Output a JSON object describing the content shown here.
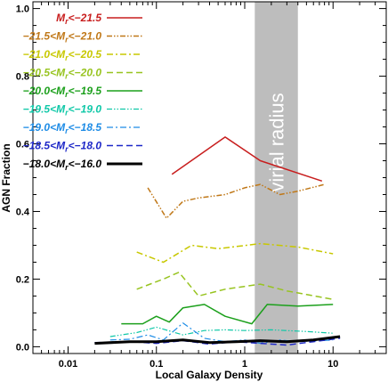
{
  "chart_data": {
    "type": "line",
    "xlabel": "Local Galaxy Density",
    "ylabel": "AGN Fraction",
    "xscale": "log",
    "xlim": [
      0.004,
      40
    ],
    "ylim": [
      -0.02,
      1.02
    ],
    "x_ticks": [
      {
        "value": 0.01,
        "label": "0.01"
      },
      {
        "value": 0.1,
        "label": "0.1"
      },
      {
        "value": 1,
        "label": "1"
      },
      {
        "value": 10,
        "label": "10"
      }
    ],
    "y_ticks": [
      {
        "value": 0.0,
        "label": "0.0"
      },
      {
        "value": 0.2,
        "label": "0.2"
      },
      {
        "value": 0.4,
        "label": "0.4"
      },
      {
        "value": 0.6,
        "label": "0.6"
      },
      {
        "value": 0.8,
        "label": "0.8"
      },
      {
        "value": 1.0,
        "label": "1.0"
      }
    ],
    "band": {
      "label": "virial radius",
      "x_range": [
        1.3,
        4.0
      ],
      "color": "#bdbdbd"
    },
    "grid": false,
    "legend_position": "top-left",
    "series": [
      {
        "name": "Mr<−21.5",
        "label_main": "M",
        "label_sub": "r",
        "label_tail": "<−21.5",
        "color": "#c81e1e",
        "dash": "solid",
        "width": 1.5,
        "x": [
          0.15,
          0.6,
          1.5,
          7.5
        ],
        "y": [
          0.51,
          0.62,
          0.55,
          0.49
        ]
      },
      {
        "name": "−21.5<Mr<−21.0",
        "label_main": "−21.5<M",
        "label_sub": "r",
        "label_tail": "<−21.0",
        "color": "#c07818",
        "dash": "dashdotdot",
        "width": 1.5,
        "x": [
          0.08,
          0.13,
          0.2,
          0.3,
          0.6,
          1.0,
          1.5,
          2.5,
          4.0,
          8.0
        ],
        "y": [
          0.47,
          0.38,
          0.43,
          0.44,
          0.45,
          0.47,
          0.48,
          0.45,
          0.46,
          0.48
        ]
      },
      {
        "name": "−21.0<Mr<−20.5",
        "label_main": "−21.0<M",
        "label_sub": "r",
        "label_tail": "<−20.5",
        "color": "#c8c800",
        "dash": "dashdot",
        "width": 1.5,
        "x": [
          0.06,
          0.12,
          0.25,
          0.5,
          1.5,
          4.0,
          10.0
        ],
        "y": [
          0.28,
          0.25,
          0.3,
          0.29,
          0.305,
          0.295,
          0.275
        ]
      },
      {
        "name": "−20.5<Mr<−20.0",
        "label_main": "−20.5<M",
        "label_sub": "r",
        "label_tail": "<−20.0",
        "color": "#98c420",
        "dash": "dashed",
        "width": 1.5,
        "x": [
          0.06,
          0.12,
          0.18,
          0.3,
          0.6,
          1.5,
          3.0,
          10.0
        ],
        "y": [
          0.17,
          0.2,
          0.22,
          0.15,
          0.17,
          0.185,
          0.165,
          0.14
        ]
      },
      {
        "name": "−20.0<Mr<−19.5",
        "label_main": "−20.0<M",
        "label_sub": "r",
        "label_tail": "<−19.5",
        "color": "#1ca01c",
        "dash": "solid",
        "width": 1.5,
        "x": [
          0.04,
          0.07,
          0.1,
          0.14,
          0.2,
          0.35,
          0.6,
          1.2,
          1.8,
          4.0,
          10.0
        ],
        "y": [
          0.068,
          0.068,
          0.09,
          0.073,
          0.115,
          0.125,
          0.09,
          0.068,
          0.125,
          0.12,
          0.125
        ]
      },
      {
        "name": "−19.5<Mr<−19.0",
        "label_main": "−19.5<M",
        "label_sub": "r",
        "label_tail": "<−19.0",
        "color": "#10c8a8",
        "dash": "dashdotdot",
        "width": 1.2,
        "x": [
          0.03,
          0.06,
          0.1,
          0.2,
          0.35,
          0.6,
          1.0,
          2.0,
          5.0,
          10.0
        ],
        "y": [
          0.03,
          0.042,
          0.058,
          0.035,
          0.048,
          0.05,
          0.048,
          0.05,
          0.045,
          0.04
        ]
      },
      {
        "name": "−19.0<Mr<−18.5",
        "label_main": "−19.0<M",
        "label_sub": "r",
        "label_tail": "<−18.5",
        "color": "#1e8ce6",
        "dash": "dashdot",
        "width": 1.2,
        "x": [
          0.03,
          0.05,
          0.08,
          0.12,
          0.2,
          0.35,
          0.6,
          1.0,
          1.5,
          2.5,
          4.0,
          10.0
        ],
        "y": [
          0.02,
          0.022,
          0.035,
          0.02,
          0.07,
          0.025,
          0.015,
          0.02,
          0.01,
          0.02,
          0.015,
          0.02
        ]
      },
      {
        "name": "−18.5<Mr<−18.0",
        "label_main": "−18.5<M",
        "label_sub": "r",
        "label_tail": "<−18.0",
        "color": "#1e28c8",
        "dash": "dashed",
        "width": 1.5,
        "x": [
          0.02,
          0.05,
          0.1,
          0.2,
          0.4,
          0.8,
          1.5,
          3.0,
          6.0,
          12.0
        ],
        "y": [
          0.012,
          0.015,
          0.01,
          0.018,
          0.008,
          0.015,
          0.01,
          0.005,
          0.015,
          0.025
        ]
      },
      {
        "name": "−18.0<Mr<−16.0",
        "label_main": "−18.0<M",
        "label_sub": "r",
        "label_tail": "<−16.0",
        "color": "#000000",
        "dash": "solid",
        "width": 3,
        "x": [
          0.02,
          0.05,
          0.1,
          0.2,
          0.4,
          0.8,
          1.5,
          3.0,
          6.0,
          12.0
        ],
        "y": [
          0.01,
          0.015,
          0.015,
          0.02,
          0.012,
          0.015,
          0.018,
          0.015,
          0.02,
          0.03
        ]
      }
    ]
  }
}
